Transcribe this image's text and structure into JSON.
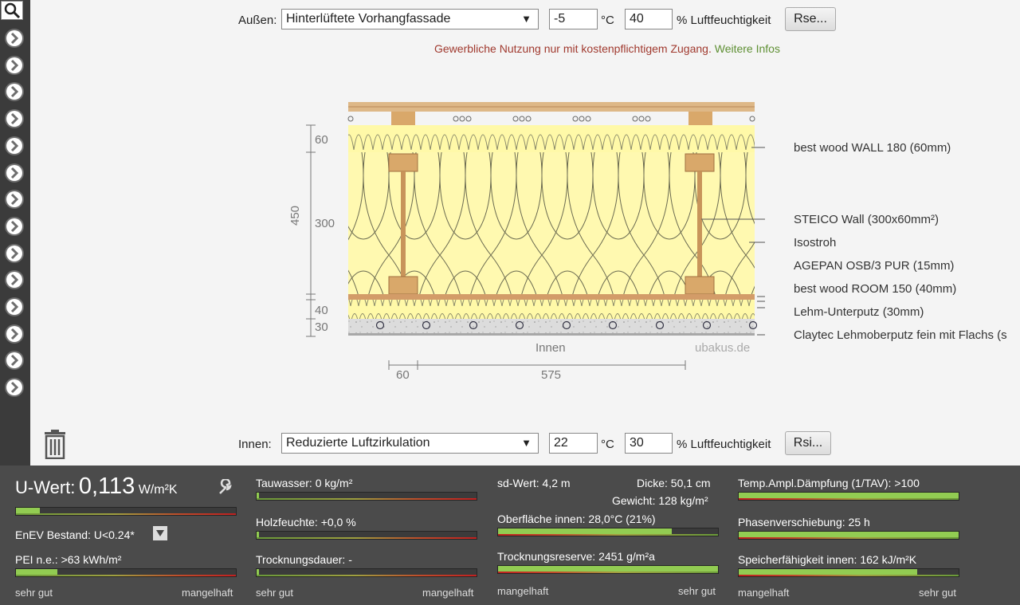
{
  "outside": {
    "label": "Außen:",
    "type_value": "Hinterlüftete Vorhangfassade",
    "temperature": "-5",
    "temp_unit": "°C",
    "humidity": "40",
    "humidity_unit": "% Luftfeuchtigkeit",
    "resistance_button": "Rse..."
  },
  "notice": {
    "text": "Gewerbliche Nutzung nur mit kostenpflichtigem Zugang.",
    "link": "Weitere Infos"
  },
  "diagram": {
    "layers": [
      "best wood WALL 180 (60mm)",
      "STEICO  Wall (300x60mm²)",
      "Isostroh",
      "AGEPAN OSB/3 PUR (15mm)",
      "best wood ROOM 150 (40mm)",
      "Lehm-Unterputz (30mm)",
      "Claytec Lehmoberputz fein mit Flachs (s"
    ],
    "dims_vertical": [
      "60",
      "300",
      "40",
      "30"
    ],
    "total_thickness": "450",
    "dims_horizontal": [
      "60",
      "575"
    ],
    "inside_label": "Innen",
    "watermark": "ubakus.de"
  },
  "inside": {
    "label": "Innen:",
    "type_value": "Reduzierte Luftzirkulation",
    "temperature": "22",
    "temp_unit": "°C",
    "humidity": "30",
    "humidity_unit": "% Luftfeuchtigkeit",
    "resistance_button": "Rsi..."
  },
  "results": {
    "u_value": {
      "label": "U-Wert:",
      "value": "0,113",
      "unit": "W/m²K",
      "fill": 0.11
    },
    "enev": {
      "text": "EnEV Bestand: U<0.24*"
    },
    "pei": {
      "text": "PEI n.e.: >63 kWh/m²",
      "fill": 0.19
    },
    "tauwasser": {
      "text": "Tauwasser: 0 kg/m²",
      "fill": 0.01
    },
    "holzfeuchte": {
      "text": "Holzfeuchte: +0,0 %",
      "fill": 0.01
    },
    "trocknungsdauer": {
      "text": "Trocknungsdauer: -",
      "fill": 0.01
    },
    "sd_wert": {
      "text": "sd-Wert: 4,2 m"
    },
    "dicke": {
      "text": "Dicke: 50,1 cm"
    },
    "gewicht": {
      "text": "Gewicht: 128 kg/m²"
    },
    "oberflaeche": {
      "text": "Oberfläche innen: 28,0°C (21%)",
      "fill": 0.79
    },
    "trocknungsreserve": {
      "text": "Trocknungsreserve: 2451 g/m²a",
      "fill": 1.0
    },
    "tav": {
      "text": "Temp.Ampl.Dämpfung (1/TAV): >100",
      "fill": 1.0
    },
    "phase": {
      "text": "Phasenverschiebung: 25 h",
      "fill": 1.0
    },
    "speicher": {
      "text": "Speicherfähigkeit innen: 162 kJ/m²K",
      "fill": 0.81
    },
    "scale_good": "sehr gut",
    "scale_bad": "mangelhaft"
  }
}
